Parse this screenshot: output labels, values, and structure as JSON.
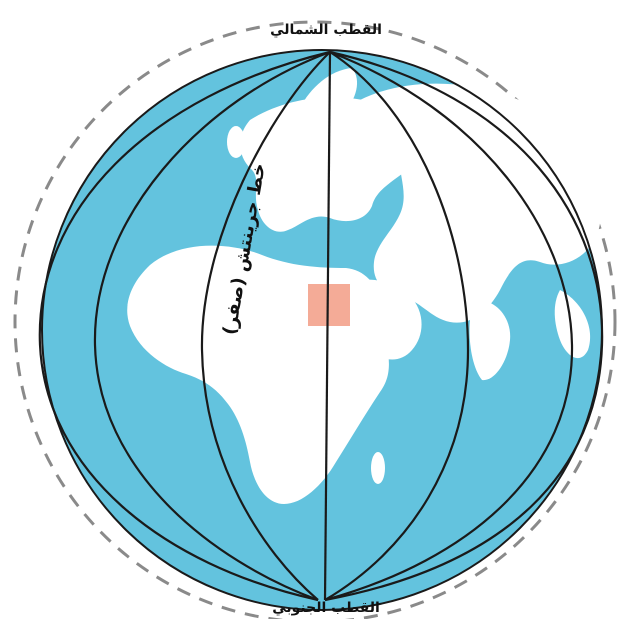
{
  "labels": {
    "north_pole": "القطب الشمالي",
    "south_pole": "القطب الجنوبي",
    "greenwich": "خط جرينتش (صفر)"
  },
  "colors": {
    "ocean": "#63c3de",
    "land": "#ffffff",
    "lines": "#1a1a1a",
    "highlight": "#f3a28c",
    "dashed_outline": "#8a8a8a"
  }
}
